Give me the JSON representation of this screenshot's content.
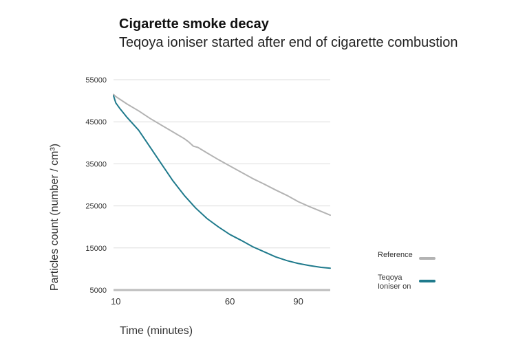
{
  "chart_data": {
    "type": "line",
    "title": "Cigarette smoke decay",
    "subtitle": "Teqoya ioniser started after end of cigarette combustion",
    "xlabel": "Time (minutes)",
    "ylabel": "Particles count (number / cm³)",
    "x_ticks": [
      10,
      60,
      90
    ],
    "y_ticks": [
      5000,
      15000,
      25000,
      35000,
      45000,
      55000
    ],
    "xlim": [
      9,
      104
    ],
    "ylim": [
      5000,
      55000
    ],
    "grid": true,
    "legend_position": "right",
    "series": [
      {
        "name": "Reference",
        "color": "#b3b3b3",
        "x": [
          9,
          10,
          15,
          20,
          25,
          30,
          35,
          40,
          42,
          44,
          46,
          50,
          55,
          60,
          65,
          70,
          75,
          80,
          85,
          90,
          95,
          100,
          104
        ],
        "values": [
          51500,
          51000,
          49200,
          47600,
          45800,
          44200,
          42600,
          41000,
          40200,
          39200,
          38900,
          37600,
          36000,
          34500,
          33000,
          31500,
          30200,
          28800,
          27500,
          26000,
          24800,
          23700,
          22800
        ]
      },
      {
        "name": "Teqoya\nIoniser on",
        "color": "#1f7a8c",
        "x": [
          9,
          10,
          12,
          15,
          20,
          25,
          30,
          35,
          40,
          45,
          50,
          55,
          60,
          65,
          70,
          75,
          80,
          85,
          90,
          95,
          100,
          104
        ],
        "values": [
          51200,
          49500,
          48000,
          46000,
          43000,
          39000,
          35000,
          31000,
          27500,
          24500,
          22000,
          20000,
          18200,
          16800,
          15300,
          14100,
          12900,
          12000,
          11300,
          10800,
          10400,
          10200
        ]
      }
    ]
  }
}
